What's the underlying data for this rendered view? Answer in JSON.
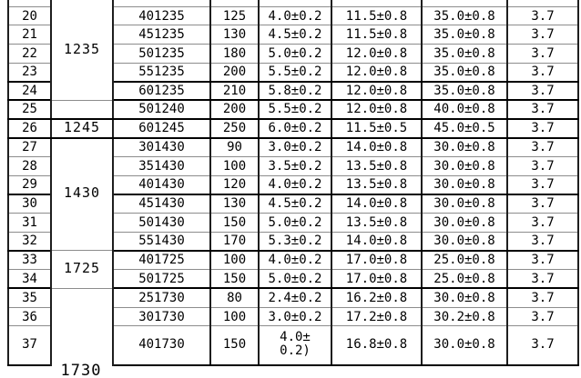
{
  "table": {
    "hanging_group_label": "1730",
    "cell_names": [
      "model-cell",
      "capacity-cell",
      "thickness-cell",
      "width-cell",
      "length-cell",
      "voltage-cell"
    ],
    "rows": [
      {
        "no": "",
        "partial": true,
        "group": {
          "label": "1235",
          "span": 6
        },
        "cells": [
          "",
          "",
          "",
          "",
          "",
          ""
        ]
      },
      {
        "no": "20",
        "cells": [
          "401235",
          "125",
          "4.0±0.2",
          "11.5±0.8",
          "35.0±0.8",
          "3.7"
        ]
      },
      {
        "no": "21",
        "cells": [
          "451235",
          "130",
          "4.5±0.2",
          "11.5±0.8",
          "35.0±0.8",
          "3.7"
        ]
      },
      {
        "no": "22",
        "cells": [
          "501235",
          "180",
          "5.0±0.2",
          "12.0±0.8",
          "35.0±0.8",
          "3.7"
        ]
      },
      {
        "no": "23",
        "thick_bottom": true,
        "cells": [
          "551235",
          "200",
          "5.5±0.2",
          "12.0±0.8",
          "35.0±0.8",
          "3.7"
        ]
      },
      {
        "no": "24",
        "thick_bottom": true,
        "cells": [
          "601235",
          "210",
          "5.8±0.2",
          "12.0±0.8",
          "35.0±0.8",
          "3.7"
        ]
      },
      {
        "no": "25",
        "thick_bottom": true,
        "group": {
          "label": "",
          "span": 1
        },
        "cells": [
          "501240",
          "200",
          "5.5±0.2",
          "12.0±0.8",
          "40.0±0.8",
          "3.7"
        ]
      },
      {
        "no": "26",
        "thick_bottom": true,
        "group": {
          "label": "1245",
          "span": 1
        },
        "cells": [
          "601245",
          "250",
          "6.0±0.2",
          "11.5±0.5",
          "45.0±0.5",
          "3.7"
        ]
      },
      {
        "no": "27",
        "group": {
          "label": "1430",
          "span": 6
        },
        "cells": [
          "301430",
          "90",
          "3.0±0.2",
          "14.0±0.8",
          "30.0±0.8",
          "3.7"
        ]
      },
      {
        "no": "28",
        "cells": [
          "351430",
          "100",
          "3.5±0.2",
          "13.5±0.8",
          "30.0±0.8",
          "3.7"
        ]
      },
      {
        "no": "29",
        "thick_bottom": true,
        "cells": [
          "401430",
          "120",
          "4.0±0.2",
          "13.5±0.8",
          "30.0±0.8",
          "3.7"
        ]
      },
      {
        "no": "30",
        "cells": [
          "451430",
          "130",
          "4.5±0.2",
          "14.0±0.8",
          "30.0±0.8",
          "3.7"
        ]
      },
      {
        "no": "31",
        "cells": [
          "501430",
          "150",
          "5.0±0.2",
          "13.5±0.8",
          "30.0±0.8",
          "3.7"
        ]
      },
      {
        "no": "32",
        "thick_bottom": true,
        "cells": [
          "551430",
          "170",
          "5.3±0.2",
          "14.0±0.8",
          "30.0±0.8",
          "3.7"
        ]
      },
      {
        "no": "33",
        "group": {
          "label": "1725",
          "span": 2
        },
        "cells": [
          "401725",
          "100",
          "4.0±0.2",
          "17.0±0.8",
          "25.0±0.8",
          "3.7"
        ]
      },
      {
        "no": "34",
        "thick_bottom": true,
        "cells": [
          "501725",
          "150",
          "5.0±0.2",
          "17.0±0.8",
          "25.0±0.8",
          "3.7"
        ]
      },
      {
        "no": "35",
        "group": {
          "label": "",
          "span": 3,
          "no_bottom": true
        },
        "cells": [
          "251730",
          "80",
          "2.4±0.2",
          "16.2±0.8",
          "30.0±0.8",
          "3.7"
        ]
      },
      {
        "no": "36",
        "cells": [
          "301730",
          "100",
          "3.0±0.2",
          "17.2±0.8",
          "30.2±0.8",
          "3.7"
        ]
      },
      {
        "no": "37",
        "tall": true,
        "cells": [
          "401730",
          "150",
          "4.0±\n0.2)",
          "16.8±0.8",
          "30.0±0.8",
          "3.7"
        ]
      }
    ]
  }
}
